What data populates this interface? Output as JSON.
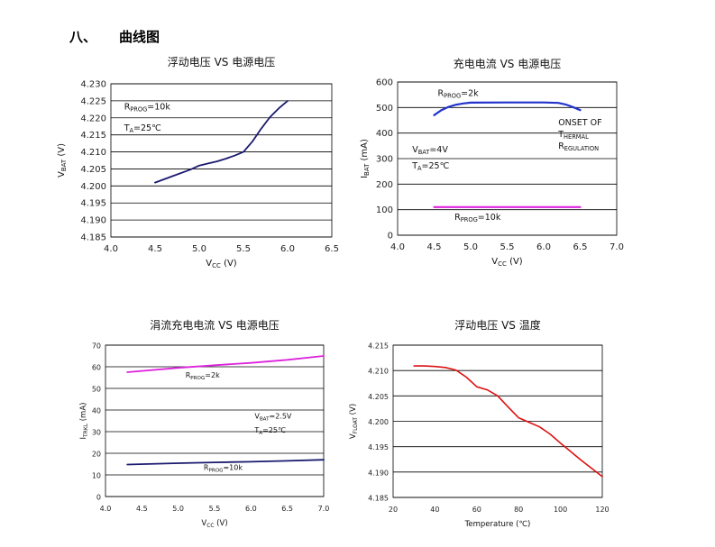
{
  "section": {
    "number": "八、",
    "title": "曲线图"
  },
  "chart_data": [
    {
      "type": "line",
      "title": "浮动电压 VS 电源电压",
      "xlabel": "VCC (V)",
      "ylabel": "VBAT (V)",
      "xlim": [
        4.0,
        6.5
      ],
      "ylim": [
        4.185,
        4.23
      ],
      "xticks": [
        "4.0",
        "4.5",
        "5.0",
        "5.5",
        "6.0",
        "6.5"
      ],
      "yticks": [
        "4.185",
        "4.190",
        "4.195",
        "4.200",
        "4.205",
        "4.210",
        "4.215",
        "4.220",
        "4.225",
        "4.230"
      ],
      "series": [
        {
          "name": "VBAT",
          "color": "#1a1a6e",
          "x": [
            4.5,
            4.7,
            4.9,
            5.0,
            5.1,
            5.2,
            5.3,
            5.4,
            5.5,
            5.6,
            5.7,
            5.8,
            5.9,
            6.0
          ],
          "y": [
            4.201,
            4.2029,
            4.2048,
            4.206,
            4.2066,
            4.2072,
            4.208,
            4.2089,
            4.21,
            4.213,
            4.2168,
            4.2202,
            4.2228,
            4.225
          ]
        }
      ],
      "annotations": [
        {
          "text": "RPROG=10k",
          "at": [
            4.15,
            4.2225
          ]
        },
        {
          "text": "TA=25℃",
          "at": [
            4.15,
            4.2163
          ]
        }
      ]
    },
    {
      "type": "line",
      "title": "充电电流 VS 电源电压",
      "xlabel": "VCC (V)",
      "ylabel": "IBAT (mA)",
      "xlim": [
        4.0,
        7.0
      ],
      "ylim": [
        0,
        600
      ],
      "xticks": [
        "4.0",
        "4.5",
        "5.0",
        "5.5",
        "6.0",
        "6.5",
        "7.0"
      ],
      "yticks": [
        "0",
        "100",
        "200",
        "300",
        "400",
        "500",
        "600"
      ],
      "series": [
        {
          "name": "RPROG=2k",
          "color": "#2233cc",
          "x": [
            4.5,
            4.6,
            4.7,
            4.8,
            4.9,
            5.0,
            5.5,
            6.0,
            6.2,
            6.3,
            6.4,
            6.5
          ],
          "y": [
            470,
            490,
            503,
            511,
            516,
            519,
            520,
            520,
            518,
            512,
            502,
            490
          ]
        },
        {
          "name": "RPROG=10k",
          "color": "#dd22dd",
          "x": [
            4.5,
            5.0,
            5.5,
            6.0,
            6.5
          ],
          "y": [
            110,
            110,
            110,
            110,
            110
          ]
        }
      ],
      "annotations": [
        {
          "text": "RPROG=2k",
          "at": [
            4.55,
            545
          ]
        },
        {
          "text": "ONSET OF",
          "at": [
            6.2,
            430
          ]
        },
        {
          "text": "THERMAL",
          "at": [
            6.2,
            385
          ]
        },
        {
          "text": "REGULATION",
          "at": [
            6.2,
            338
          ]
        },
        {
          "text": "VBAT=4V",
          "at": [
            4.2,
            325
          ]
        },
        {
          "text": "TA=25℃",
          "at": [
            4.2,
            262
          ]
        },
        {
          "text": "RPROG=10k",
          "at": [
            4.78,
            60
          ]
        }
      ]
    },
    {
      "type": "line",
      "title": "涓流充电电流 VS 电源电压",
      "xlabel": "VCC (V)",
      "ylabel": "ITRKL (mA)",
      "xlim": [
        4.0,
        7.0
      ],
      "ylim": [
        0,
        70
      ],
      "xticks": [
        "4.0",
        "4.5",
        "5.0",
        "5.5",
        "6.0",
        "6.5",
        "7.0"
      ],
      "yticks": [
        "0",
        "10",
        "20",
        "30",
        "40",
        "50",
        "60",
        "70"
      ],
      "series": [
        {
          "name": "RPROG=2k",
          "color": "#dd22dd",
          "x": [
            4.3,
            5.0,
            5.5,
            6.0,
            6.5,
            7.0
          ],
          "y": [
            57.5,
            59.5,
            60.7,
            61.8,
            63.2,
            65.0
          ]
        },
        {
          "name": "RPROG=10k",
          "color": "#1a1a6e",
          "x": [
            4.3,
            5.0,
            5.5,
            6.0,
            6.5,
            7.0
          ],
          "y": [
            14.8,
            15.4,
            15.8,
            16.1,
            16.5,
            17.0
          ]
        }
      ],
      "annotations": [
        {
          "text": "RPROG=2k",
          "at": [
            5.1,
            55
          ]
        },
        {
          "text": "VBAT=2.5V",
          "at": [
            6.05,
            36
          ]
        },
        {
          "text": "TA=25℃",
          "at": [
            6.05,
            29.5
          ]
        },
        {
          "text": "RPROG=10k",
          "at": [
            5.35,
            12.3
          ]
        }
      ]
    },
    {
      "type": "line",
      "title": "浮动电压  VS  温度",
      "xlabel": "Temperature (℃)",
      "ylabel": "VFLOAT (V)",
      "xlim": [
        20,
        120
      ],
      "ylim": [
        4.185,
        4.215
      ],
      "xticks": [
        "20",
        "40",
        "60",
        "80",
        "100",
        "120"
      ],
      "yticks": [
        "4.185",
        "4.190",
        "4.195",
        "4.200",
        "4.205",
        "4.210",
        "4.215"
      ],
      "series": [
        {
          "name": "VFLOAT",
          "color": "#dd1111",
          "x": [
            30,
            35,
            40,
            45,
            50,
            55,
            60,
            65,
            70,
            75,
            80,
            85,
            90,
            95,
            100,
            105,
            110,
            115,
            120
          ],
          "y": [
            4.2109,
            4.2109,
            4.2108,
            4.2106,
            4.2101,
            4.2087,
            4.2068,
            4.2062,
            4.205,
            4.2028,
            4.2007,
            4.1998,
            4.1989,
            4.1975,
            4.1957,
            4.194,
            4.1923,
            4.1907,
            4.1891
          ]
        }
      ],
      "annotations": []
    }
  ]
}
